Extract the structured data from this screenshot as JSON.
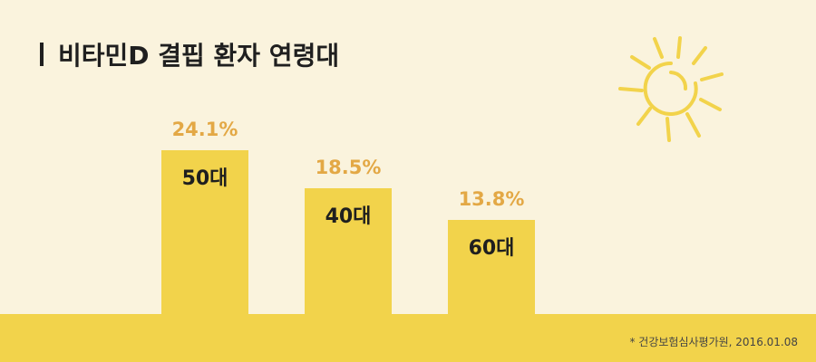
{
  "title": "비타민D 결핍 환자 연령대",
  "source": "* 건강보험심사평가원, 2016.01.08",
  "colors": {
    "background": "#faf3dd",
    "bar": "#f2d34b",
    "value_text": "#e3a845",
    "text": "#1f1f1f",
    "sun": "#f2d34b"
  },
  "decorations": {
    "sun": "sun-icon"
  },
  "chart_data": {
    "type": "bar",
    "title": "비타민D 결핍 환자 연령대",
    "categories": [
      "50대",
      "40대",
      "60대"
    ],
    "values": [
      24.1,
      18.5,
      13.8
    ],
    "value_labels": [
      "24.1%",
      "18.5%",
      "13.8%"
    ],
    "unit": "%",
    "xlabel": "",
    "ylabel": "",
    "ylim": [
      0,
      26
    ],
    "grid": false,
    "legend": "none"
  }
}
